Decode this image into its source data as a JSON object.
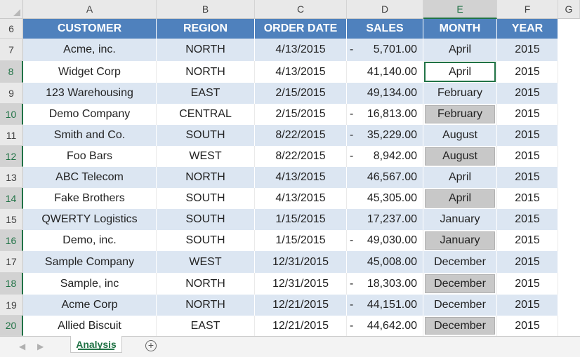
{
  "columns": [
    "A",
    "B",
    "C",
    "D",
    "E",
    "F",
    "G"
  ],
  "selected_column": "E",
  "header_row": {
    "row_number": "6",
    "labels": [
      "CUSTOMER",
      "REGION",
      "ORDER DATE",
      "SALES",
      "MONTH",
      "YEAR"
    ]
  },
  "rows": [
    {
      "num": "7",
      "customer": "Acme, inc.",
      "region": "NORTH",
      "date": "4/13/2015",
      "neg": "-",
      "sales": "5,701.00",
      "month": "April",
      "year": "2015"
    },
    {
      "num": "8",
      "customer": "Widget Corp",
      "region": "NORTH",
      "date": "4/13/2015",
      "neg": "",
      "sales": "41,140.00",
      "month": "April",
      "year": "2015"
    },
    {
      "num": "9",
      "customer": "123 Warehousing",
      "region": "EAST",
      "date": "2/15/2015",
      "neg": "",
      "sales": "49,134.00",
      "month": "February",
      "year": "2015"
    },
    {
      "num": "10",
      "customer": "Demo Company",
      "region": "CENTRAL",
      "date": "2/15/2015",
      "neg": "-",
      "sales": "16,813.00",
      "month": "February",
      "year": "2015"
    },
    {
      "num": "11",
      "customer": "Smith and Co.",
      "region": "SOUTH",
      "date": "8/22/2015",
      "neg": "-",
      "sales": "35,229.00",
      "month": "August",
      "year": "2015"
    },
    {
      "num": "12",
      "customer": "Foo Bars",
      "region": "WEST",
      "date": "8/22/2015",
      "neg": "-",
      "sales": "8,942.00",
      "month": "August",
      "year": "2015"
    },
    {
      "num": "13",
      "customer": "ABC Telecom",
      "region": "NORTH",
      "date": "4/13/2015",
      "neg": "",
      "sales": "46,567.00",
      "month": "April",
      "year": "2015"
    },
    {
      "num": "14",
      "customer": "Fake Brothers",
      "region": "SOUTH",
      "date": "4/13/2015",
      "neg": "",
      "sales": "45,305.00",
      "month": "April",
      "year": "2015"
    },
    {
      "num": "15",
      "customer": "QWERTY Logistics",
      "region": "SOUTH",
      "date": "1/15/2015",
      "neg": "",
      "sales": "17,237.00",
      "month": "January",
      "year": "2015"
    },
    {
      "num": "16",
      "customer": "Demo, inc.",
      "region": "SOUTH",
      "date": "1/15/2015",
      "neg": "-",
      "sales": "49,030.00",
      "month": "January",
      "year": "2015"
    },
    {
      "num": "17",
      "customer": "Sample Company",
      "region": "WEST",
      "date": "12/31/2015",
      "neg": "",
      "sales": "45,008.00",
      "month": "December",
      "year": "2015"
    },
    {
      "num": "18",
      "customer": "Sample, inc",
      "region": "NORTH",
      "date": "12/31/2015",
      "neg": "-",
      "sales": "18,303.00",
      "month": "December",
      "year": "2015"
    },
    {
      "num": "19",
      "customer": "Acme Corp",
      "region": "NORTH",
      "date": "12/21/2015",
      "neg": "-",
      "sales": "44,151.00",
      "month": "December",
      "year": "2015"
    },
    {
      "num": "20",
      "customer": "Allied Biscuit",
      "region": "EAST",
      "date": "12/21/2015",
      "neg": "-",
      "sales": "44,642.00",
      "month": "December",
      "year": "2015"
    }
  ],
  "sheet_tabs": [
    {
      "label": "Analysis",
      "active": true
    }
  ],
  "add_sheet_icon": "plus-circle-icon",
  "colors": {
    "header_fill": "#4f81bd",
    "band_fill": "#dce6f2",
    "selection_green": "#217346",
    "highlight_gray": "#c8c8c8"
  }
}
